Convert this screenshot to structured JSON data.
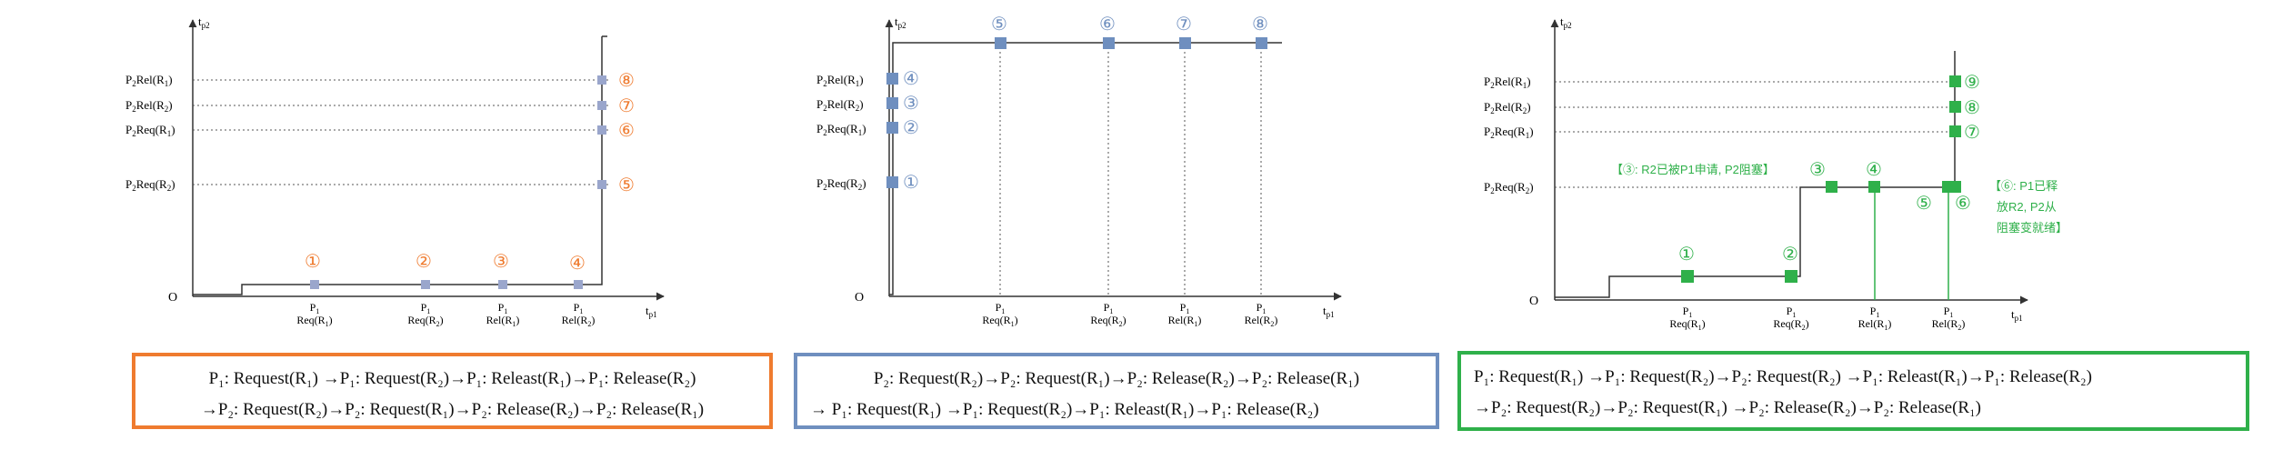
{
  "axes": {
    "y_label": "t",
    "y_sub": "p2",
    "x_label": "t",
    "x_sub": "p1",
    "origin": "O"
  },
  "colors": {
    "orange": "#ef7b2f",
    "blue": "#6f8fbf",
    "green": "#2fb04a"
  },
  "diagram1": {
    "y_labels": [
      {
        "main": "P",
        "sub": "2",
        "rest": "Rel(R",
        "rsub": "1",
        "tail": ")"
      },
      {
        "main": "P",
        "sub": "2",
        "rest": "Rel(R",
        "rsub": "2",
        "tail": ")"
      },
      {
        "main": "P",
        "sub": "2",
        "rest": "Req(R",
        "rsub": "1",
        "tail": ")"
      },
      {
        "main": "P",
        "sub": "2",
        "rest": "Req(R",
        "rsub": "2",
        "tail": ")"
      }
    ],
    "x_labels": [
      {
        "top": "P",
        "tsub": "1",
        "bottom": "Req(R",
        "bsub": "1"
      },
      {
        "top": "P",
        "tsub": "1",
        "bottom": "Req(R",
        "bsub": "2"
      },
      {
        "top": "P",
        "tsub": "1",
        "bottom": "Rel(R",
        "bsub": "1"
      },
      {
        "top": "P",
        "tsub": "1",
        "bottom": "Rel(R",
        "bsub": "2"
      }
    ],
    "bottom_markers": [
      "①",
      "②",
      "③",
      "④"
    ],
    "right_markers": [
      "⑧",
      "⑦",
      "⑥",
      "⑤"
    ],
    "caption": {
      "line1": "P₁: Request(R₁) →P₁:  Request(R₂)→P₁:  Releast(R₁)→P₁:  Release(R₂)",
      "line2": "→P₂:  Request(R₂)→P₂:  Request(R₁)→P₂:  Release(R₂)→P₂:  Release(R₁)"
    }
  },
  "diagram2": {
    "y_labels": [
      {
        "main": "P",
        "sub": "2",
        "rest": "Rel(R",
        "rsub": "1",
        "tail": ")"
      },
      {
        "main": "P",
        "sub": "2",
        "rest": "Rel(R",
        "rsub": "2",
        "tail": ")"
      },
      {
        "main": "P",
        "sub": "2",
        "rest": "Req(R",
        "rsub": "1",
        "tail": ")"
      },
      {
        "main": "P",
        "sub": "2",
        "rest": "Req(R",
        "rsub": "2",
        "tail": ")"
      }
    ],
    "x_labels": [
      {
        "top": "P",
        "tsub": "1",
        "bottom": "Req(R",
        "bsub": "1"
      },
      {
        "top": "P",
        "tsub": "1",
        "bottom": "Req(R",
        "bsub": "2"
      },
      {
        "top": "P",
        "tsub": "1",
        "bottom": "Rel(R",
        "bsub": "1"
      },
      {
        "top": "P",
        "tsub": "1",
        "bottom": "Rel(R",
        "bsub": "2"
      }
    ],
    "left_markers": [
      "④",
      "③",
      "②",
      "①"
    ],
    "top_markers": [
      "⑤",
      "⑥",
      "⑦",
      "⑧"
    ],
    "caption": {
      "line1": "P₂:  Request(R₂)→P₂:  Request(R₁)→P₂:  Release(R₂)→P₂:  Release(R₁)",
      "line2": "→  P₁: Request(R₁) →P₁:  Request(R₂)→P₁:  Releast(R₁)→P₁:  Release(R₂)"
    }
  },
  "diagram3": {
    "y_labels": [
      {
        "main": "P",
        "sub": "2",
        "rest": "Rel(R",
        "rsub": "1",
        "tail": ")"
      },
      {
        "main": "P",
        "sub": "2",
        "rest": "Rel(R",
        "rsub": "2",
        "tail": ")"
      },
      {
        "main": "P",
        "sub": "2",
        "rest": "Req(R",
        "rsub": "1",
        "tail": ")"
      },
      {
        "main": "P",
        "sub": "2",
        "rest": "Req(R",
        "rsub": "2",
        "tail": ")"
      }
    ],
    "x_labels": [
      {
        "top": "P",
        "tsub": "1",
        "bottom": "Req(R",
        "bsub": "1"
      },
      {
        "top": "P",
        "tsub": "1",
        "bottom": "Req(R",
        "bsub": "2"
      },
      {
        "top": "P",
        "tsub": "1",
        "bottom": "Rel(R",
        "bsub": "1"
      },
      {
        "top": "P",
        "tsub": "1",
        "bottom": "Rel(R",
        "bsub": "2"
      }
    ],
    "markers": {
      "m1": "①",
      "m2": "②",
      "m3": "③",
      "m4": "④",
      "m5": "⑤",
      "m6": "⑥",
      "m7": "⑦",
      "m8": "⑧",
      "m9": "⑨"
    },
    "note3": "【③: R2已被P1申请, P2阻塞】",
    "note6": [
      "【⑥: P1已释",
      "放R2, P2从",
      "阻塞变就绪】"
    ],
    "caption": {
      "line1": "P₁: Request(R₁) →P₁:  Request(R₂)→P₂:  Request(R₂) →P₁:  Releast(R₁)→P₁:  Release(R₂)",
      "line2": "→P₂:  Request(R₂)→P₂:  Request(R₁) →P₂:  Release(R₂)→P₂:  Release(R₁)"
    }
  }
}
